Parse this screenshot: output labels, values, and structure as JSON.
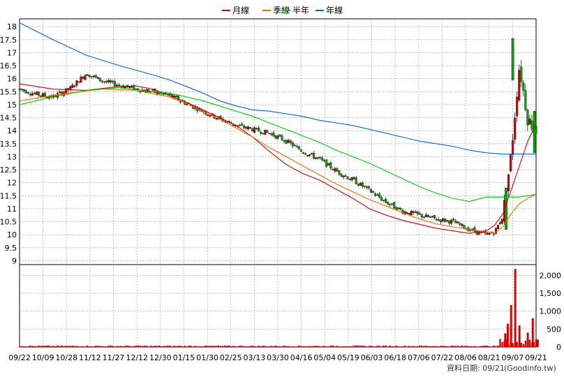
{
  "chart_data": {
    "type": "candlestick",
    "legend": [
      {
        "name": "月線",
        "color": "#cc0000"
      },
      {
        "name": "季線",
        "color": "#ff6600"
      },
      {
        "name": "半年",
        "color": "#00cc00"
      },
      {
        "name": "年線",
        "color": "#0066cc"
      }
    ],
    "price_ylim": [
      8.85,
      18.3
    ],
    "price_ticks": [
      "18",
      "17.5",
      "17",
      "16.5",
      "16",
      "15.5",
      "15",
      "14.5",
      "14",
      "13.5",
      "13",
      "12.5",
      "12",
      "11.5",
      "11",
      "10.5",
      "10",
      "9.5",
      "9"
    ],
    "volume_ylim": [
      0,
      2300
    ],
    "volume_ticks": [
      "2,000",
      "1,500",
      "1,000",
      "500",
      "0"
    ],
    "x_ticks": [
      "09/22",
      "10/09",
      "10/28",
      "11/12",
      "11/27",
      "12/12",
      "12/30",
      "01/15",
      "01/30",
      "02/25",
      "03/13",
      "03/30",
      "04/16",
      "05/04",
      "05/19",
      "06/03",
      "06/18",
      "07/06",
      "07/22",
      "08/06",
      "08/21",
      "09/07",
      "09/21"
    ],
    "moving_averages": {
      "月線": [
        [
          0,
          15.8
        ],
        [
          2,
          15.6
        ],
        [
          4,
          15.55
        ],
        [
          6,
          15.7
        ],
        [
          7,
          15.72
        ],
        [
          8,
          15.6
        ],
        [
          9,
          15.35
        ],
        [
          10,
          15.1
        ],
        [
          11,
          14.8
        ],
        [
          12,
          14.5
        ],
        [
          13,
          14.2
        ],
        [
          14,
          13.75
        ],
        [
          15,
          13.2
        ],
        [
          16,
          12.7
        ],
        [
          17,
          12.35
        ],
        [
          18,
          12.1
        ],
        [
          19,
          11.75
        ],
        [
          20,
          11.4
        ],
        [
          21,
          11.0
        ],
        [
          22,
          10.75
        ],
        [
          23,
          10.55
        ],
        [
          24,
          10.4
        ],
        [
          25,
          10.25
        ],
        [
          26,
          10.15
        ],
        [
          27,
          10.05
        ],
        [
          28,
          10.15
        ],
        [
          28.5,
          10.35
        ],
        [
          29,
          10.8
        ],
        [
          29.5,
          11.7
        ],
        [
          30,
          12.65
        ],
        [
          30.5,
          13.6
        ],
        [
          31,
          14.25
        ]
      ],
      "季線": [
        [
          0,
          15.15
        ],
        [
          3,
          15.45
        ],
        [
          5,
          15.6
        ],
        [
          7,
          15.55
        ],
        [
          9,
          15.3
        ],
        [
          10,
          15.05
        ],
        [
          11,
          14.75
        ],
        [
          12,
          14.45
        ],
        [
          13,
          14.1
        ],
        [
          14,
          13.75
        ],
        [
          15,
          13.35
        ],
        [
          16,
          13.0
        ],
        [
          17,
          12.65
        ],
        [
          18,
          12.3
        ],
        [
          19,
          11.95
        ],
        [
          20,
          11.65
        ],
        [
          21,
          11.35
        ],
        [
          22,
          11.1
        ],
        [
          23,
          10.85
        ],
        [
          24,
          10.6
        ],
        [
          25,
          10.42
        ],
        [
          26,
          10.3
        ],
        [
          27,
          10.2
        ],
        [
          28,
          10.1
        ],
        [
          28.5,
          10.05
        ],
        [
          29,
          10.3
        ],
        [
          29.5,
          10.8
        ],
        [
          30,
          11.2
        ],
        [
          30.5,
          11.4
        ],
        [
          31,
          11.55
        ]
      ],
      "半年": [
        [
          0,
          15.0
        ],
        [
          2,
          15.3
        ],
        [
          4,
          15.55
        ],
        [
          6,
          15.65
        ],
        [
          8,
          15.5
        ],
        [
          9,
          15.45
        ],
        [
          10,
          15.3
        ],
        [
          11,
          15.15
        ],
        [
          12,
          14.95
        ],
        [
          13,
          14.75
        ],
        [
          14,
          14.55
        ],
        [
          15,
          14.3
        ],
        [
          16,
          14.05
        ],
        [
          17,
          13.8
        ],
        [
          18,
          13.55
        ],
        [
          19,
          13.25
        ],
        [
          20,
          13.0
        ],
        [
          21,
          12.75
        ],
        [
          22,
          12.45
        ],
        [
          23,
          12.15
        ],
        [
          24,
          11.85
        ],
        [
          25,
          11.6
        ],
        [
          26,
          11.4
        ],
        [
          27,
          11.28
        ],
        [
          28,
          11.45
        ],
        [
          29,
          11.45
        ],
        [
          30,
          11.45
        ],
        [
          31,
          11.55
        ]
      ],
      "年線": [
        [
          0,
          18.15
        ],
        [
          2,
          17.5
        ],
        [
          4,
          16.9
        ],
        [
          6,
          16.5
        ],
        [
          8,
          16.15
        ],
        [
          9,
          15.95
        ],
        [
          10,
          15.7
        ],
        [
          11,
          15.45
        ],
        [
          12,
          15.15
        ],
        [
          13,
          14.95
        ],
        [
          14,
          14.8
        ],
        [
          15,
          14.75
        ],
        [
          16,
          14.65
        ],
        [
          17,
          14.55
        ],
        [
          18,
          14.4
        ],
        [
          19,
          14.3
        ],
        [
          20,
          14.2
        ],
        [
          21,
          14.05
        ],
        [
          22,
          13.9
        ],
        [
          23,
          13.75
        ],
        [
          24,
          13.6
        ],
        [
          25,
          13.5
        ],
        [
          26,
          13.4
        ],
        [
          27,
          13.25
        ],
        [
          28,
          13.15
        ],
        [
          29,
          13.1
        ],
        [
          30,
          13.1
        ],
        [
          31,
          13.1
        ]
      ]
    },
    "price_path": [
      [
        0,
        15.6
      ],
      [
        1,
        15.4
      ],
      [
        2,
        15.3
      ],
      [
        3,
        15.6
      ],
      [
        4,
        16.2
      ],
      [
        5,
        15.9
      ],
      [
        6,
        15.75
      ],
      [
        7,
        15.6
      ],
      [
        8,
        15.5
      ],
      [
        9,
        15.35
      ],
      [
        10,
        15.05
      ],
      [
        11,
        14.75
      ],
      [
        12,
        14.45
      ],
      [
        13,
        14.2
      ],
      [
        14,
        14.05
      ],
      [
        15,
        13.9
      ],
      [
        16,
        13.6
      ],
      [
        17,
        13.2
      ],
      [
        18,
        12.9
      ],
      [
        19,
        12.45
      ],
      [
        20,
        12.1
      ],
      [
        21,
        11.7
      ],
      [
        22,
        11.25
      ],
      [
        23,
        10.9
      ],
      [
        24,
        10.75
      ],
      [
        25,
        10.6
      ],
      [
        26,
        10.5
      ],
      [
        27,
        10.2
      ],
      [
        28,
        10.0
      ],
      [
        28.5,
        10.1
      ],
      [
        29,
        10.7
      ],
      [
        29.5,
        13.05
      ],
      [
        30,
        16.5
      ],
      [
        30.5,
        14.45
      ],
      [
        31,
        14.0
      ]
    ],
    "spikes": [
      [
        29.6,
        17.55
      ],
      [
        30.9,
        14.75
      ],
      [
        29.2,
        11.8
      ]
    ],
    "volume_spikes": [
      [
        29.15,
        380
      ],
      [
        29.3,
        650
      ],
      [
        29.5,
        1170
      ],
      [
        29.75,
        2180
      ],
      [
        30.0,
        600
      ],
      [
        30.5,
        400
      ],
      [
        30.8,
        800
      ],
      [
        31.1,
        210
      ]
    ]
  },
  "footer": {
    "label": "資料日期: 09/21",
    "source": "(Goodinfo.tw)"
  }
}
